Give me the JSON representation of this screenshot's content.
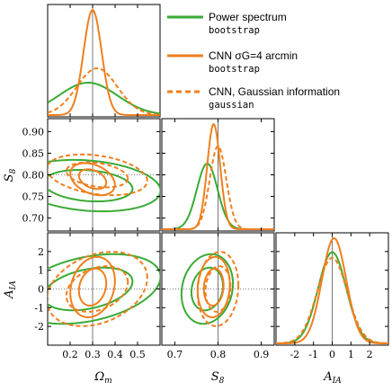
{
  "chart_data": {
    "type": "corner",
    "parameters": [
      {
        "key": "om",
        "label": "Ωm",
        "range": [
          0.1,
          0.6
        ],
        "ticks": [
          0.2,
          0.3,
          0.4,
          0.5
        ],
        "tick_labels": [
          "0.2",
          "0.3",
          "0.4",
          "0.5"
        ],
        "fiducial": 0.3
      },
      {
        "key": "s8",
        "label": "S8",
        "range": [
          0.67,
          0.93
        ],
        "ticks": [
          0.7,
          0.75,
          0.8,
          0.85,
          0.9
        ],
        "tick_labels": [
          "0.70",
          "0.75",
          "0.80",
          "0.85",
          "0.90"
        ],
        "x_ticks": [
          0.7,
          0.8,
          0.9
        ],
        "x_tick_labels": [
          "0.7",
          "0.8",
          "0.9"
        ],
        "fiducial": 0.8
      },
      {
        "key": "aia",
        "label": "AIA",
        "range": [
          -3,
          3
        ],
        "ticks": [
          -2,
          -1,
          0,
          1,
          2
        ],
        "tick_labels": [
          "-2",
          "-1",
          "0",
          "1",
          "2"
        ],
        "x_tick_labels": [
          "-2",
          "-1",
          "0",
          "1",
          "2"
        ],
        "fiducial": 0
      }
    ],
    "series": [
      {
        "name": "Power spectrum",
        "sub": "bootstrap",
        "color": "#3aaa35",
        "dash": "solid",
        "mean": {
          "om": 0.28,
          "s8": 0.775,
          "aia": 0.0
        },
        "sigma": {
          "om": 0.13,
          "s8": 0.024,
          "aia": 0.75
        },
        "corr": {
          "om_s8": -0.2,
          "om_aia": 0.35,
          "s8_aia": 0.15
        }
      },
      {
        "name": "CNN σG=4 arcmin",
        "sub": "bootstrap",
        "color": "#f07f1e",
        "dash": "solid",
        "mean": {
          "om": 0.3,
          "s8": 0.79,
          "aia": 0.1
        },
        "sigma": {
          "om": 0.04,
          "s8": 0.015,
          "aia": 0.65
        },
        "corr": {
          "om_s8": -0.35,
          "om_aia": 0.2,
          "s8_aia": 0.1
        }
      },
      {
        "name": "CNN, Gaussian information",
        "sub": "gaussian",
        "color": "#f07f1e",
        "dash": "dashed",
        "mean": {
          "om": 0.32,
          "s8": 0.8,
          "aia": 0.0
        },
        "sigma": {
          "om": 0.09,
          "s8": 0.019,
          "aia": 0.8
        },
        "corr": {
          "om_s8": -0.3,
          "om_aia": 0.3,
          "s8_aia": 0.1
        }
      }
    ],
    "legend_position": "top-right",
    "reference_lines": true
  }
}
